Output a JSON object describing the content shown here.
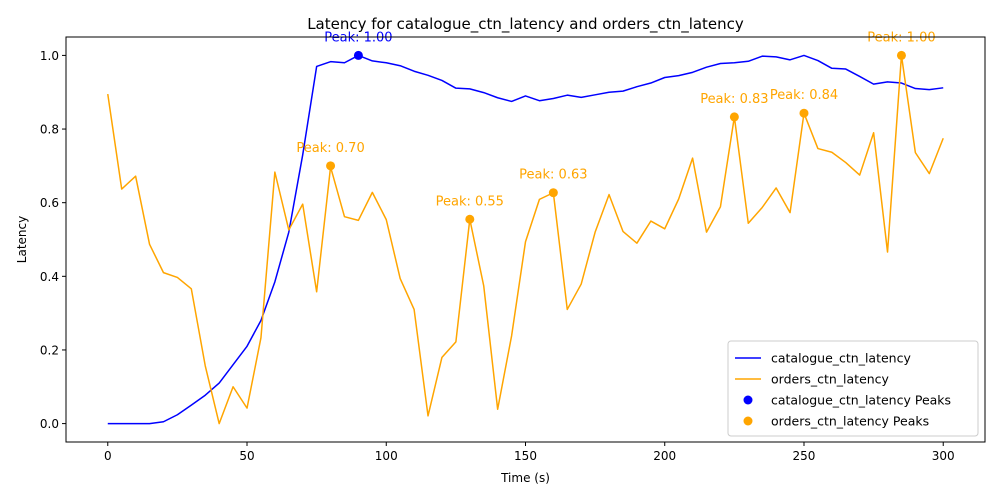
{
  "chart_data": {
    "type": "line",
    "title": "Latency for catalogue_ctn_latency and orders_ctn_latency",
    "xlabel": "Time (s)",
    "ylabel": "Latency",
    "xlim": [
      -15,
      315
    ],
    "ylim": [
      -0.05,
      1.05
    ],
    "xticks": [
      0,
      50,
      100,
      150,
      200,
      250,
      300
    ],
    "yticks": [
      0.0,
      0.2,
      0.4,
      0.6,
      0.8,
      1.0
    ],
    "xtick_labels": [
      "0",
      "50",
      "100",
      "150",
      "200",
      "250",
      "300"
    ],
    "ytick_labels": [
      "0.0",
      "0.2",
      "0.4",
      "0.6",
      "0.8",
      "1.0"
    ],
    "grid": false,
    "legend_position": "lower-right",
    "x": [
      0,
      5,
      10,
      15,
      20,
      25,
      30,
      35,
      40,
      45,
      50,
      55,
      60,
      65,
      70,
      75,
      80,
      85,
      90,
      95,
      100,
      105,
      110,
      115,
      120,
      125,
      130,
      135,
      140,
      145,
      150,
      155,
      160,
      165,
      170,
      175,
      180,
      185,
      190,
      195,
      200,
      205,
      210,
      215,
      220,
      225,
      230,
      235,
      240,
      245,
      250,
      255,
      260,
      265,
      270,
      275,
      280,
      285,
      290,
      295,
      300
    ],
    "series": [
      {
        "name": "catalogue_ctn_latency",
        "color": "#0000ff",
        "values": [
          0.0,
          0.0,
          0.0,
          0.0,
          0.005,
          0.024,
          0.05,
          0.077,
          0.11,
          0.16,
          0.21,
          0.28,
          0.385,
          0.52,
          0.73,
          0.97,
          0.983,
          0.98,
          1.0,
          0.985,
          0.98,
          0.972,
          0.957,
          0.946,
          0.932,
          0.911,
          0.909,
          0.899,
          0.885,
          0.875,
          0.89,
          0.877,
          0.883,
          0.892,
          0.886,
          0.893,
          0.9,
          0.903,
          0.915,
          0.925,
          0.94,
          0.945,
          0.954,
          0.968,
          0.978,
          0.98,
          0.984,
          0.998,
          0.996,
          0.988,
          1.0,
          0.986,
          0.965,
          0.963,
          0.943,
          0.922,
          0.928,
          0.925,
          0.91,
          0.907,
          0.912
        ]
      },
      {
        "name": "orders_ctn_latency",
        "color": "#ffa500",
        "values": [
          0.895,
          0.637,
          0.672,
          0.487,
          0.41,
          0.397,
          0.366,
          0.157,
          0.0,
          0.1,
          0.042,
          0.233,
          0.683,
          0.526,
          0.596,
          0.358,
          0.697,
          0.562,
          0.552,
          0.628,
          0.554,
          0.394,
          0.31,
          0.021,
          0.18,
          0.222,
          0.555,
          0.374,
          0.039,
          0.238,
          0.494,
          0.609,
          0.627,
          0.31,
          0.379,
          0.52,
          0.622,
          0.522,
          0.49,
          0.55,
          0.529,
          0.61,
          0.721,
          0.52,
          0.589,
          0.833,
          0.544,
          0.587,
          0.64,
          0.573,
          0.843,
          0.747,
          0.737,
          0.709,
          0.675,
          0.79,
          0.466,
          1.0,
          0.736,
          0.679,
          0.775
        ]
      }
    ],
    "peaks": [
      {
        "series": "catalogue_ctn_latency",
        "x": 90,
        "y": 1.0,
        "label": "Peak: 1.00",
        "color": "#0000ff"
      },
      {
        "series": "orders_ctn_latency",
        "x": 80,
        "y": 0.7,
        "label": "Peak: 0.70",
        "color": "#ffa500"
      },
      {
        "series": "orders_ctn_latency",
        "x": 130,
        "y": 0.555,
        "label": "Peak: 0.55",
        "color": "#ffa500"
      },
      {
        "series": "orders_ctn_latency",
        "x": 160,
        "y": 0.627,
        "label": "Peak: 0.63",
        "color": "#ffa500"
      },
      {
        "series": "orders_ctn_latency",
        "x": 225,
        "y": 0.833,
        "label": "Peak: 0.83",
        "color": "#ffa500"
      },
      {
        "series": "orders_ctn_latency",
        "x": 250,
        "y": 0.843,
        "label": "Peak: 0.84",
        "color": "#ffa500"
      },
      {
        "series": "orders_ctn_latency",
        "x": 285,
        "y": 1.0,
        "label": "Peak: 1.00",
        "color": "#ffa500"
      }
    ],
    "legend": [
      {
        "label": "catalogue_ctn_latency",
        "kind": "line",
        "color": "#0000ff"
      },
      {
        "label": "orders_ctn_latency",
        "kind": "line",
        "color": "#ffa500"
      },
      {
        "label": "catalogue_ctn_latency Peaks",
        "kind": "marker",
        "color": "#0000ff"
      },
      {
        "label": "orders_ctn_latency Peaks",
        "kind": "marker",
        "color": "#ffa500"
      }
    ]
  }
}
